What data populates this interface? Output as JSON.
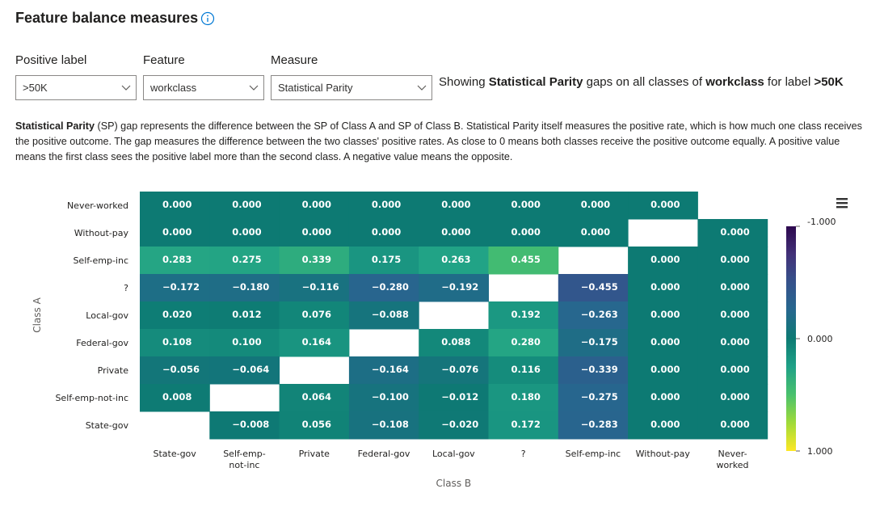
{
  "header": {
    "title": "Feature balance measures",
    "info_icon": "info-icon"
  },
  "controls": {
    "positive_label": {
      "label": "Positive label",
      "value": ">50K"
    },
    "feature": {
      "label": "Feature",
      "value": "workclass"
    },
    "measure": {
      "label": "Measure",
      "value": "Statistical Parity"
    }
  },
  "showing": {
    "prefix": "Showing ",
    "measure": "Statistical Parity",
    "middle1": " gaps on all classes of ",
    "feature": "workclass",
    "middle2": " for label ",
    "label": ">50K"
  },
  "description": {
    "bold": "Statistical Parity",
    "text": " (SP) gap represents the difference between the SP of Class A and SP of Class B. Statistical Parity itself measures the positive rate, which is how much one class receives the positive outcome. The gap measures the difference between the two classes' positive rates. As close to 0 means both classes receive the positive outcome equally. A positive value means the first class sees the positive label more than the second class. A negative value means the opposite."
  },
  "chart_data": {
    "type": "heatmap",
    "xlabel": "Class B",
    "ylabel": "Class A",
    "x_categories": [
      "State-gov",
      "Self-emp-not-inc",
      "Private",
      "Federal-gov",
      "Local-gov",
      "?",
      "Self-emp-inc",
      "Without-pay",
      "Never-worked"
    ],
    "x_tick_labels": [
      [
        "State-gov"
      ],
      [
        "Self-emp-",
        "not-inc"
      ],
      [
        "Private"
      ],
      [
        "Federal-gov"
      ],
      [
        "Local-gov"
      ],
      [
        "?"
      ],
      [
        "Self-emp-inc"
      ],
      [
        "Without-pay"
      ],
      [
        "Never-",
        "worked"
      ]
    ],
    "y_categories": [
      "Never-worked",
      "Without-pay",
      "Self-emp-inc",
      "?",
      "Local-gov",
      "Federal-gov",
      "Private",
      "Self-emp-not-inc",
      "State-gov"
    ],
    "values": [
      [
        0.0,
        0.0,
        0.0,
        0.0,
        0.0,
        0.0,
        0.0,
        0.0,
        null
      ],
      [
        0.0,
        0.0,
        0.0,
        0.0,
        0.0,
        0.0,
        0.0,
        null,
        0.0
      ],
      [
        0.283,
        0.275,
        0.339,
        0.175,
        0.263,
        0.455,
        null,
        0.0,
        0.0
      ],
      [
        -0.172,
        -0.18,
        -0.116,
        -0.28,
        -0.192,
        null,
        -0.455,
        0.0,
        0.0
      ],
      [
        0.02,
        0.012,
        0.076,
        -0.088,
        null,
        0.192,
        -0.263,
        0.0,
        0.0
      ],
      [
        0.108,
        0.1,
        0.164,
        null,
        0.088,
        0.28,
        -0.175,
        0.0,
        0.0
      ],
      [
        -0.056,
        -0.064,
        null,
        -0.164,
        -0.076,
        0.116,
        -0.339,
        0.0,
        0.0
      ],
      [
        0.008,
        null,
        0.064,
        -0.1,
        -0.012,
        0.18,
        -0.275,
        0.0,
        0.0
      ],
      [
        null,
        -0.008,
        0.056,
        -0.108,
        -0.02,
        0.172,
        -0.283,
        0.0,
        0.0
      ]
    ],
    "colorbar": {
      "min": -1,
      "max": 1,
      "tick_labels": [
        "-1.000",
        "0.000",
        "1.000"
      ],
      "colormap": "viridis_r"
    }
  },
  "colors": {
    "missing_cell": "#ffffff",
    "cell_text": "#ffffff",
    "axis_text": "#201f1e"
  },
  "menu_icon": "hamburger-menu-icon"
}
